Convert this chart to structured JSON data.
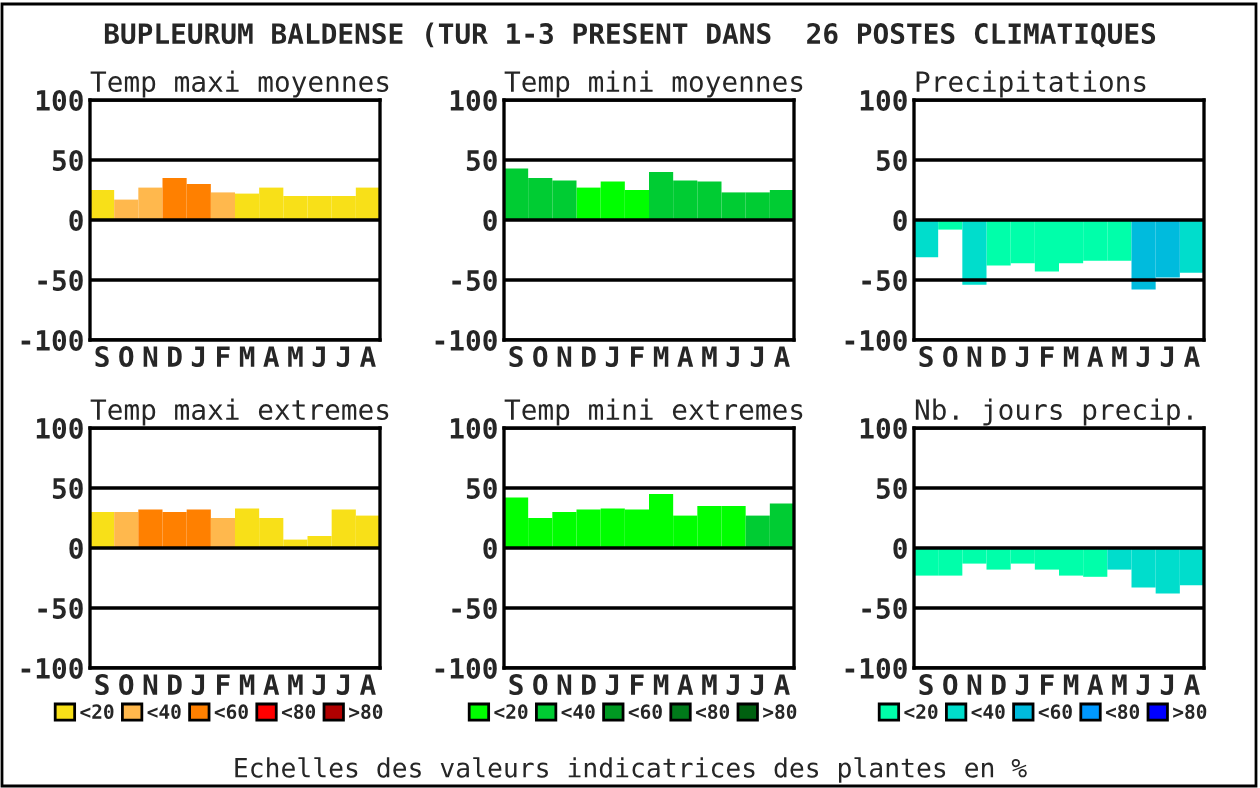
{
  "chart_data": [
    {
      "type": "other",
      "title": "BUPLEURUM BALDENSE (TUR 1-3 PRESENT DANS  26 POSTES CLIMATIQUES",
      "annotations": [
        "Echelles des valeurs indicatrices des plantes en %"
      ]
    },
    {
      "type": "bar",
      "title": "Temp maxi moyennes",
      "categories": [
        "S",
        "O",
        "N",
        "D",
        "J",
        "F",
        "M",
        "A",
        "M",
        "J",
        "J",
        "A"
      ],
      "series": [
        {
          "color": "#f8e018",
          "values": [
            25,
            null,
            null,
            null,
            null,
            null,
            22,
            27,
            20,
            20,
            20,
            27
          ]
        },
        {
          "color": "#ffb84d",
          "values": [
            null,
            17,
            27,
            null,
            null,
            23,
            null,
            null,
            null,
            null,
            null,
            null
          ]
        },
        {
          "color": "#ff8000",
          "values": [
            null,
            null,
            null,
            35,
            30,
            null,
            null,
            null,
            null,
            null,
            null,
            null
          ]
        }
      ],
      "ylim": [
        -100,
        100
      ],
      "yticks": [
        -100,
        -50,
        0,
        50,
        100
      ],
      "grid": "y"
    },
    {
      "type": "bar",
      "title": "Temp mini moyennes",
      "categories": [
        "S",
        "O",
        "N",
        "D",
        "J",
        "F",
        "M",
        "A",
        "M",
        "J",
        "J",
        "A"
      ],
      "series": [
        {
          "color": "#00ff00",
          "values": [
            null,
            null,
            null,
            27,
            32,
            25,
            null,
            null,
            null,
            null,
            null,
            null
          ]
        },
        {
          "color": "#00cc33",
          "values": [
            43,
            35,
            33,
            null,
            null,
            null,
            40,
            33,
            32,
            23,
            23,
            25
          ]
        }
      ],
      "ylim": [
        -100,
        100
      ],
      "yticks": [
        -100,
        -50,
        0,
        50,
        100
      ],
      "grid": "y"
    },
    {
      "type": "bar",
      "title": "Precipitations",
      "categories": [
        "S",
        "O",
        "N",
        "D",
        "J",
        "F",
        "M",
        "A",
        "M",
        "J",
        "J",
        "A"
      ],
      "series": [
        {
          "color": "#00ffaa",
          "values": [
            null,
            -8,
            null,
            -38,
            -36,
            -43,
            -36,
            -34,
            -34,
            null,
            null,
            null
          ]
        },
        {
          "color": "#00ddcc",
          "values": [
            -31,
            null,
            -54,
            null,
            null,
            null,
            null,
            null,
            null,
            null,
            null,
            -44
          ]
        },
        {
          "color": "#00bbdd",
          "values": [
            null,
            null,
            null,
            null,
            null,
            null,
            null,
            null,
            null,
            -58,
            -48,
            null
          ]
        }
      ],
      "ylim": [
        -100,
        100
      ],
      "yticks": [
        -100,
        -50,
        0,
        50,
        100
      ],
      "grid": "y"
    },
    {
      "type": "bar",
      "title": "Temp maxi extremes",
      "categories": [
        "S",
        "O",
        "N",
        "D",
        "J",
        "F",
        "M",
        "A",
        "M",
        "J",
        "J",
        "A"
      ],
      "series": [
        {
          "name": "<20",
          "color": "#f8e018",
          "values": [
            30,
            null,
            null,
            null,
            null,
            null,
            33,
            25,
            7,
            10,
            32,
            27
          ]
        },
        {
          "name": "<40",
          "color": "#ffb84d",
          "values": [
            null,
            30,
            null,
            null,
            null,
            25,
            null,
            null,
            null,
            null,
            null,
            null
          ]
        },
        {
          "name": "<60",
          "color": "#ff8000",
          "values": [
            null,
            null,
            32,
            30,
            32,
            null,
            null,
            null,
            null,
            null,
            null,
            null
          ]
        },
        {
          "name": "<80",
          "color": "#ff0000",
          "values": [
            null,
            null,
            null,
            null,
            null,
            null,
            null,
            null,
            null,
            null,
            null,
            null
          ]
        },
        {
          "name": ">80",
          "color": "#b00000",
          "values": [
            null,
            null,
            null,
            null,
            null,
            null,
            null,
            null,
            null,
            null,
            null,
            null
          ]
        }
      ],
      "ylim": [
        -100,
        100
      ],
      "yticks": [
        -100,
        -50,
        0,
        50,
        100
      ],
      "grid": "y",
      "legend": "bottom"
    },
    {
      "type": "bar",
      "title": "Temp mini extremes",
      "categories": [
        "S",
        "O",
        "N",
        "D",
        "J",
        "F",
        "M",
        "A",
        "M",
        "J",
        "J",
        "A"
      ],
      "series": [
        {
          "name": "<20",
          "color": "#00ff00",
          "values": [
            42,
            25,
            30,
            32,
            33,
            32,
            45,
            27,
            35,
            35,
            null,
            null
          ]
        },
        {
          "name": "<40",
          "color": "#00cc33",
          "values": [
            null,
            null,
            null,
            null,
            null,
            null,
            null,
            null,
            null,
            null,
            27,
            37
          ]
        },
        {
          "name": "<60",
          "color": "#009922",
          "values": [
            null,
            null,
            null,
            null,
            null,
            null,
            null,
            null,
            null,
            null,
            null,
            null
          ]
        },
        {
          "name": "<80",
          "color": "#007a1a",
          "values": [
            null,
            null,
            null,
            null,
            null,
            null,
            null,
            null,
            null,
            null,
            null,
            null
          ]
        },
        {
          "name": ">80",
          "color": "#006010",
          "values": [
            null,
            null,
            null,
            null,
            null,
            null,
            null,
            null,
            null,
            null,
            null,
            null
          ]
        }
      ],
      "ylim": [
        -100,
        100
      ],
      "yticks": [
        -100,
        -50,
        0,
        50,
        100
      ],
      "grid": "y",
      "legend": "bottom"
    },
    {
      "type": "bar",
      "title": "Nb. jours precip.",
      "categories": [
        "S",
        "O",
        "N",
        "D",
        "J",
        "F",
        "M",
        "A",
        "M",
        "J",
        "J",
        "A"
      ],
      "series": [
        {
          "name": "<20",
          "color": "#00ffaa",
          "values": [
            -23,
            -23,
            -13,
            -18,
            -13,
            -18,
            -23,
            -24,
            null,
            null,
            null,
            null
          ]
        },
        {
          "name": "<40",
          "color": "#00ddcc",
          "values": [
            null,
            null,
            null,
            null,
            null,
            null,
            null,
            null,
            -18,
            -33,
            -38,
            -31
          ]
        },
        {
          "name": "<60",
          "color": "#00bbdd",
          "values": [
            null,
            null,
            null,
            null,
            null,
            null,
            null,
            null,
            null,
            null,
            null,
            null
          ]
        },
        {
          "name": "<80",
          "color": "#0099ff",
          "values": [
            null,
            null,
            null,
            null,
            null,
            null,
            null,
            null,
            null,
            null,
            null,
            null
          ]
        },
        {
          "name": ">80",
          "color": "#0000ff",
          "values": [
            null,
            null,
            null,
            null,
            null,
            null,
            null,
            null,
            null,
            null,
            null,
            null
          ]
        }
      ],
      "ylim": [
        -100,
        100
      ],
      "yticks": [
        -100,
        -50,
        0,
        50,
        100
      ],
      "grid": "y",
      "legend": "bottom"
    }
  ]
}
